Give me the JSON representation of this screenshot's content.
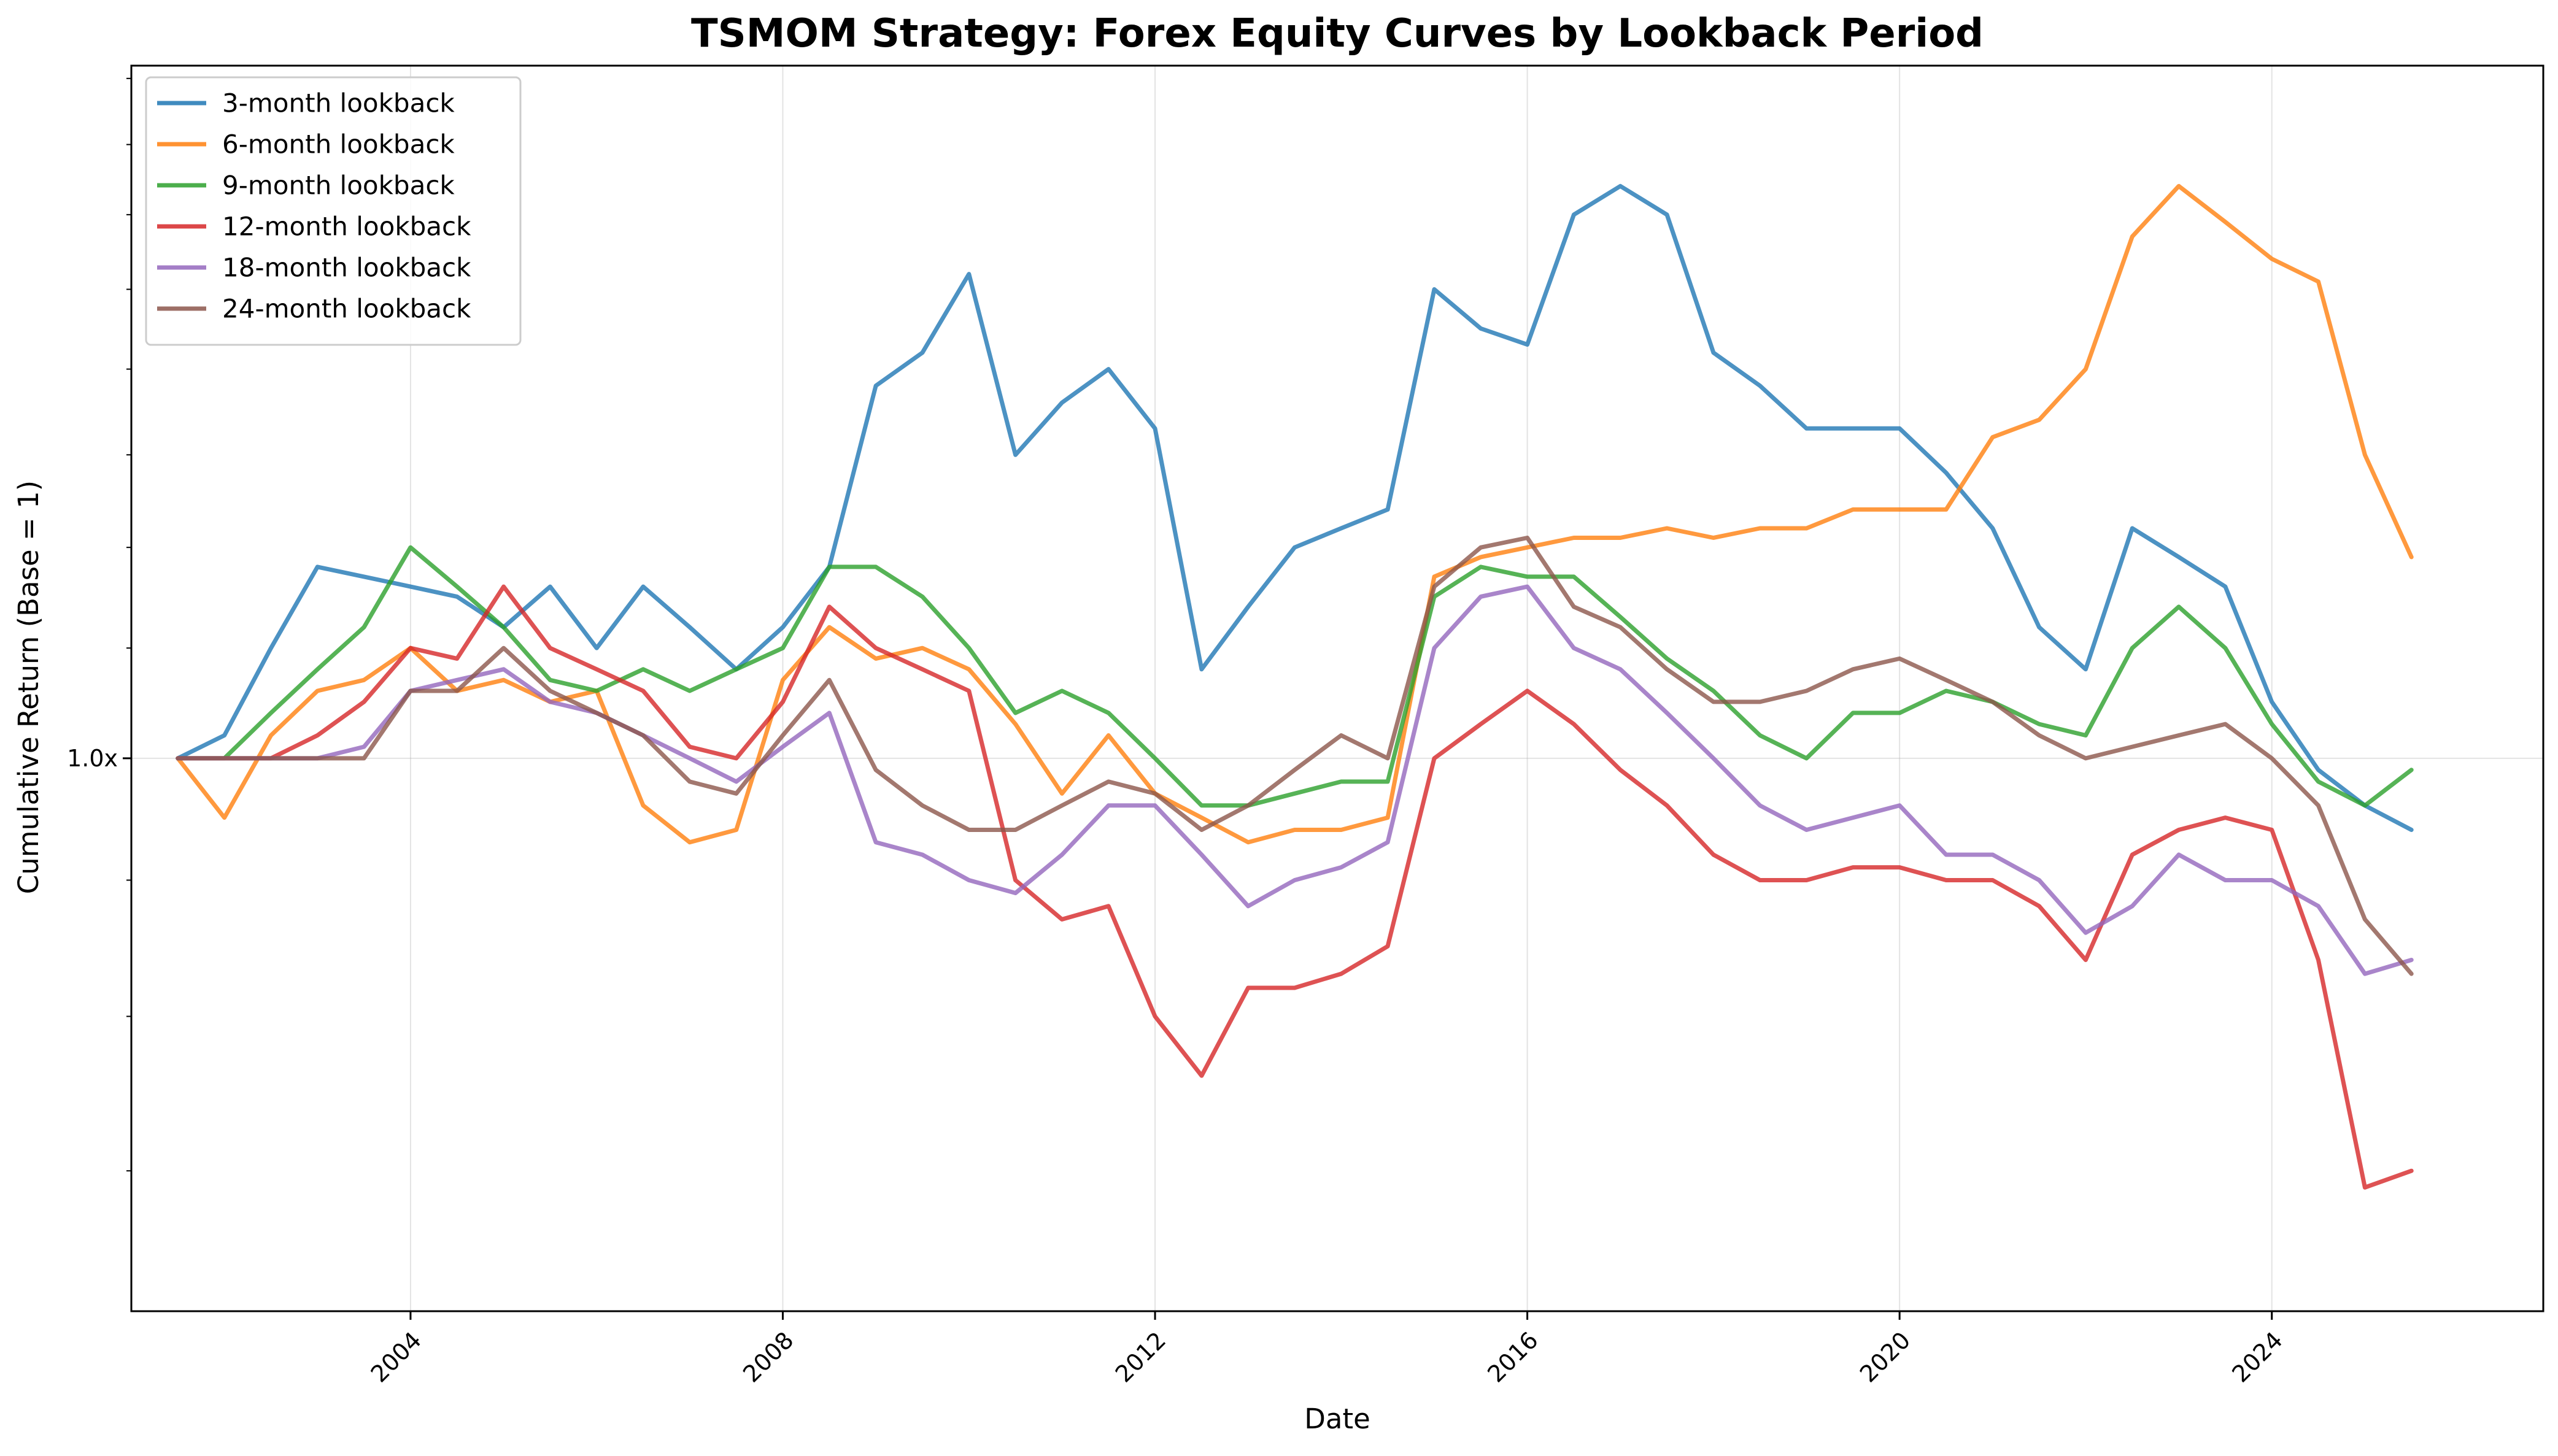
{
  "chart_data": {
    "type": "line",
    "title": "TSMOM Strategy: Forex Equity Curves by Lookback Period",
    "xlabel": "Date",
    "ylabel": "Cumulative Return (Base = 1)",
    "yscale": "log",
    "xlim": [
      "2001-01",
      "2026-12"
    ],
    "ylim": [
      0.62,
      1.82
    ],
    "x_ticks": [
      "2004",
      "2008",
      "2012",
      "2016",
      "2020",
      "2024"
    ],
    "y_ticks": [
      {
        "value": 1.0,
        "label": "1.0x"
      }
    ],
    "grid": true,
    "legend": "top-left",
    "series": [
      {
        "name": "3-month lookback",
        "color": "#1f77b4",
        "x": [
          "2001-07",
          "2002-01",
          "2002-07",
          "2003-01",
          "2003-07",
          "2004-01",
          "2004-07",
          "2005-01",
          "2005-07",
          "2006-01",
          "2006-07",
          "2007-01",
          "2007-07",
          "2008-01",
          "2008-07",
          "2009-01",
          "2009-07",
          "2010-01",
          "2010-07",
          "2011-01",
          "2011-07",
          "2012-01",
          "2012-07",
          "2013-01",
          "2013-07",
          "2014-01",
          "2014-07",
          "2015-01",
          "2015-07",
          "2016-01",
          "2016-07",
          "2017-01",
          "2017-07",
          "2018-01",
          "2018-07",
          "2019-01",
          "2019-07",
          "2020-01",
          "2020-07",
          "2021-01",
          "2021-07",
          "2022-01",
          "2022-07",
          "2023-01",
          "2023-07",
          "2024-01",
          "2024-07",
          "2025-01",
          "2025-07"
        ],
        "values": [
          1.0,
          1.02,
          1.1,
          1.18,
          1.17,
          1.16,
          1.15,
          1.12,
          1.16,
          1.1,
          1.16,
          1.12,
          1.08,
          1.12,
          1.18,
          1.38,
          1.42,
          1.52,
          1.3,
          1.36,
          1.4,
          1.33,
          1.08,
          1.14,
          1.2,
          1.22,
          1.24,
          1.5,
          1.45,
          1.43,
          1.6,
          1.64,
          1.6,
          1.42,
          1.38,
          1.33,
          1.33,
          1.33,
          1.28,
          1.22,
          1.12,
          1.08,
          1.22,
          1.19,
          1.16,
          1.05,
          0.99,
          0.96,
          0.94
        ]
      },
      {
        "name": "6-month lookback",
        "color": "#ff7f0e",
        "x": [
          "2001-07",
          "2002-01",
          "2002-07",
          "2003-01",
          "2003-07",
          "2004-01",
          "2004-07",
          "2005-01",
          "2005-07",
          "2006-01",
          "2006-07",
          "2007-01",
          "2007-07",
          "2008-01",
          "2008-07",
          "2009-01",
          "2009-07",
          "2010-01",
          "2010-07",
          "2011-01",
          "2011-07",
          "2012-01",
          "2012-07",
          "2013-01",
          "2013-07",
          "2014-01",
          "2014-07",
          "2015-01",
          "2015-07",
          "2016-01",
          "2016-07",
          "2017-01",
          "2017-07",
          "2018-01",
          "2018-07",
          "2019-01",
          "2019-07",
          "2020-01",
          "2020-07",
          "2021-01",
          "2021-07",
          "2022-01",
          "2022-07",
          "2023-01",
          "2023-07",
          "2024-01",
          "2024-07",
          "2025-01",
          "2025-07"
        ],
        "values": [
          1.0,
          0.95,
          1.02,
          1.06,
          1.07,
          1.1,
          1.06,
          1.07,
          1.05,
          1.06,
          0.96,
          0.93,
          0.94,
          1.07,
          1.12,
          1.09,
          1.1,
          1.08,
          1.03,
          0.97,
          1.02,
          0.97,
          0.95,
          0.93,
          0.94,
          0.94,
          0.95,
          1.17,
          1.19,
          1.2,
          1.21,
          1.21,
          1.22,
          1.21,
          1.22,
          1.22,
          1.24,
          1.24,
          1.24,
          1.32,
          1.34,
          1.4,
          1.57,
          1.64,
          1.59,
          1.54,
          1.51,
          1.3,
          1.19
        ]
      },
      {
        "name": "9-month lookback",
        "color": "#2ca02c",
        "x": [
          "2001-07",
          "2002-01",
          "2002-07",
          "2003-01",
          "2003-07",
          "2004-01",
          "2004-07",
          "2005-01",
          "2005-07",
          "2006-01",
          "2006-07",
          "2007-01",
          "2007-07",
          "2008-01",
          "2008-07",
          "2009-01",
          "2009-07",
          "2010-01",
          "2010-07",
          "2011-01",
          "2011-07",
          "2012-01",
          "2012-07",
          "2013-01",
          "2013-07",
          "2014-01",
          "2014-07",
          "2015-01",
          "2015-07",
          "2016-01",
          "2016-07",
          "2017-01",
          "2017-07",
          "2018-01",
          "2018-07",
          "2019-01",
          "2019-07",
          "2020-01",
          "2020-07",
          "2021-01",
          "2021-07",
          "2022-01",
          "2022-07",
          "2023-01",
          "2023-07",
          "2024-01",
          "2024-07",
          "2025-01",
          "2025-07"
        ],
        "values": [
          1.0,
          1.0,
          1.04,
          1.08,
          1.12,
          1.2,
          1.16,
          1.12,
          1.07,
          1.06,
          1.08,
          1.06,
          1.08,
          1.1,
          1.18,
          1.18,
          1.15,
          1.1,
          1.04,
          1.06,
          1.04,
          1.0,
          0.96,
          0.96,
          0.97,
          0.98,
          0.98,
          1.15,
          1.18,
          1.17,
          1.17,
          1.13,
          1.09,
          1.06,
          1.02,
          1.0,
          1.04,
          1.04,
          1.06,
          1.05,
          1.03,
          1.02,
          1.1,
          1.14,
          1.1,
          1.03,
          0.98,
          0.96,
          0.99
        ]
      },
      {
        "name": "12-month lookback",
        "color": "#d62728",
        "x": [
          "2001-07",
          "2002-01",
          "2002-07",
          "2003-01",
          "2003-07",
          "2004-01",
          "2004-07",
          "2005-01",
          "2005-07",
          "2006-01",
          "2006-07",
          "2007-01",
          "2007-07",
          "2008-01",
          "2008-07",
          "2009-01",
          "2009-07",
          "2010-01",
          "2010-07",
          "2011-01",
          "2011-07",
          "2012-01",
          "2012-07",
          "2013-01",
          "2013-07",
          "2014-01",
          "2014-07",
          "2015-01",
          "2015-07",
          "2016-01",
          "2016-07",
          "2017-01",
          "2017-07",
          "2018-01",
          "2018-07",
          "2019-01",
          "2019-07",
          "2020-01",
          "2020-07",
          "2021-01",
          "2021-07",
          "2022-01",
          "2022-07",
          "2023-01",
          "2023-07",
          "2024-01",
          "2024-07",
          "2025-01",
          "2025-07"
        ],
        "values": [
          1.0,
          1.0,
          1.0,
          1.02,
          1.05,
          1.1,
          1.09,
          1.16,
          1.1,
          1.08,
          1.06,
          1.01,
          1.0,
          1.05,
          1.14,
          1.1,
          1.08,
          1.06,
          0.9,
          0.87,
          0.88,
          0.8,
          0.76,
          0.82,
          0.82,
          0.83,
          0.85,
          1.0,
          1.03,
          1.06,
          1.03,
          0.99,
          0.96,
          0.92,
          0.9,
          0.9,
          0.91,
          0.91,
          0.9,
          0.9,
          0.88,
          0.84,
          0.92,
          0.94,
          0.95,
          0.94,
          0.84,
          0.69,
          0.7
        ]
      },
      {
        "name": "18-month lookback",
        "color": "#9467bd",
        "x": [
          "2001-07",
          "2002-01",
          "2002-07",
          "2003-01",
          "2003-07",
          "2004-01",
          "2004-07",
          "2005-01",
          "2005-07",
          "2006-01",
          "2006-07",
          "2007-01",
          "2007-07",
          "2008-01",
          "2008-07",
          "2009-01",
          "2009-07",
          "2010-01",
          "2010-07",
          "2011-01",
          "2011-07",
          "2012-01",
          "2012-07",
          "2013-01",
          "2013-07",
          "2014-01",
          "2014-07",
          "2015-01",
          "2015-07",
          "2016-01",
          "2016-07",
          "2017-01",
          "2017-07",
          "2018-01",
          "2018-07",
          "2019-01",
          "2019-07",
          "2020-01",
          "2020-07",
          "2021-01",
          "2021-07",
          "2022-01",
          "2022-07",
          "2023-01",
          "2023-07",
          "2024-01",
          "2024-07",
          "2025-01",
          "2025-07"
        ],
        "values": [
          1.0,
          1.0,
          1.0,
          1.0,
          1.01,
          1.06,
          1.07,
          1.08,
          1.05,
          1.04,
          1.02,
          1.0,
          0.98,
          1.01,
          1.04,
          0.93,
          0.92,
          0.9,
          0.89,
          0.92,
          0.96,
          0.96,
          0.92,
          0.88,
          0.9,
          0.91,
          0.93,
          1.1,
          1.15,
          1.16,
          1.1,
          1.08,
          1.04,
          1.0,
          0.96,
          0.94,
          0.95,
          0.96,
          0.92,
          0.92,
          0.9,
          0.86,
          0.88,
          0.92,
          0.9,
          0.9,
          0.88,
          0.83,
          0.84
        ]
      },
      {
        "name": "24-month lookback",
        "color": "#8c564b",
        "x": [
          "2001-07",
          "2002-01",
          "2002-07",
          "2003-01",
          "2003-07",
          "2004-01",
          "2004-07",
          "2005-01",
          "2005-07",
          "2006-01",
          "2006-07",
          "2007-01",
          "2007-07",
          "2008-01",
          "2008-07",
          "2009-01",
          "2009-07",
          "2010-01",
          "2010-07",
          "2011-01",
          "2011-07",
          "2012-01",
          "2012-07",
          "2013-01",
          "2013-07",
          "2014-01",
          "2014-07",
          "2015-01",
          "2015-07",
          "2016-01",
          "2016-07",
          "2017-01",
          "2017-07",
          "2018-01",
          "2018-07",
          "2019-01",
          "2019-07",
          "2020-01",
          "2020-07",
          "2021-01",
          "2021-07",
          "2022-01",
          "2022-07",
          "2023-01",
          "2023-07",
          "2024-01",
          "2024-07",
          "2025-01",
          "2025-07"
        ],
        "values": [
          1.0,
          1.0,
          1.0,
          1.0,
          1.0,
          1.06,
          1.06,
          1.1,
          1.06,
          1.04,
          1.02,
          0.98,
          0.97,
          1.02,
          1.07,
          0.99,
          0.96,
          0.94,
          0.94,
          0.96,
          0.98,
          0.97,
          0.94,
          0.96,
          0.99,
          1.02,
          1.0,
          1.16,
          1.2,
          1.21,
          1.14,
          1.12,
          1.08,
          1.05,
          1.05,
          1.06,
          1.08,
          1.09,
          1.07,
          1.05,
          1.02,
          1.0,
          1.01,
          1.02,
          1.03,
          1.0,
          0.96,
          0.87,
          0.83
        ]
      }
    ]
  }
}
